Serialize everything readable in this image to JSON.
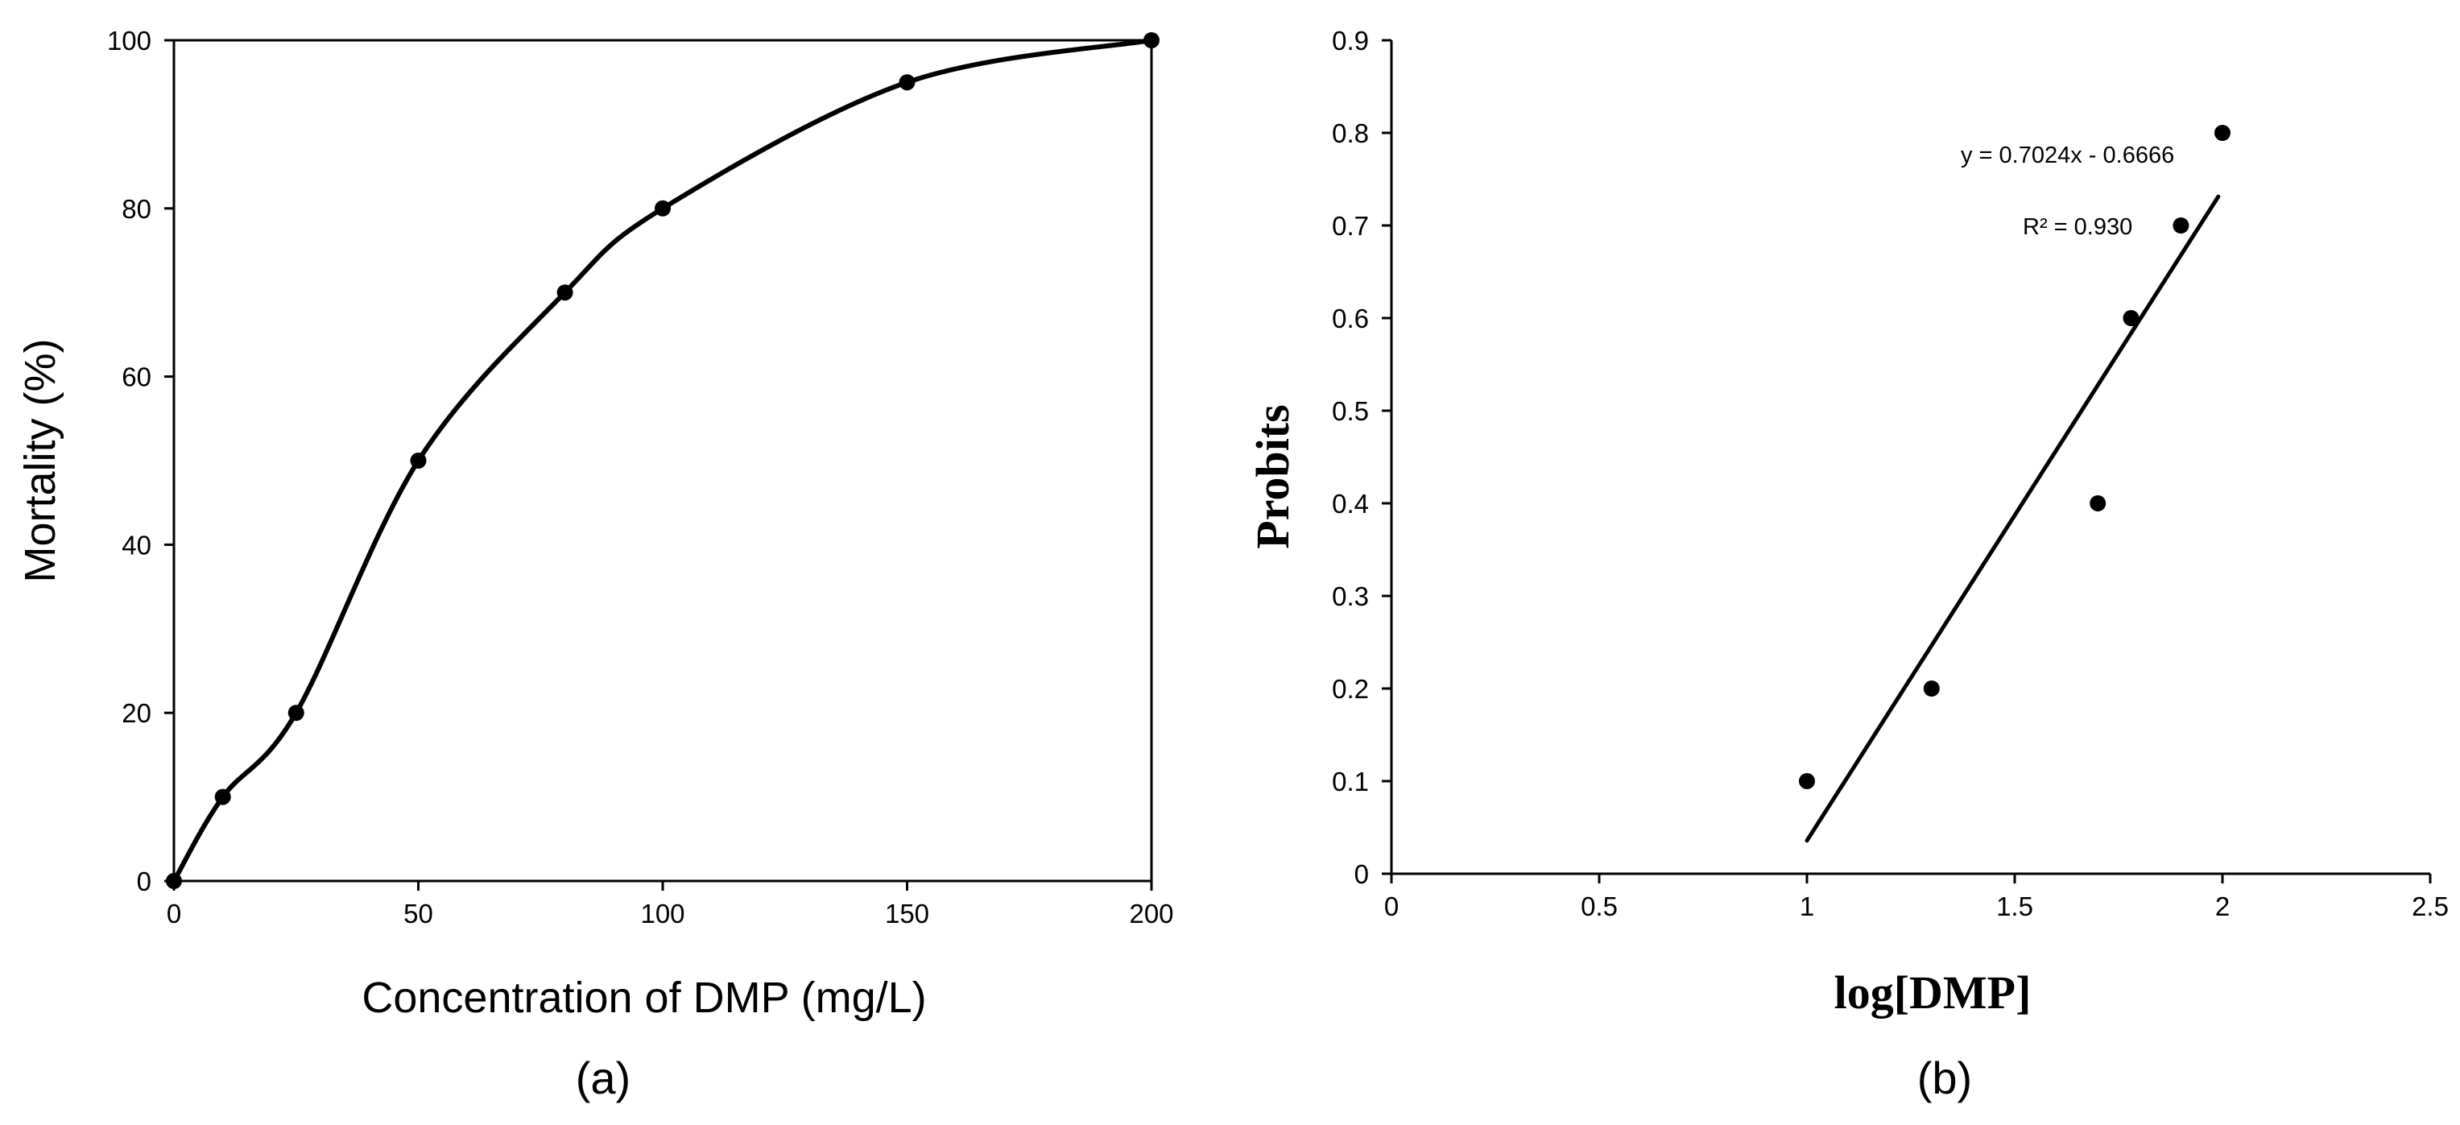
{
  "chart_data": [
    {
      "type": "line",
      "panel_label": "(a)",
      "title": "",
      "xlabel": "Concentration of DMP (mg/L)",
      "ylabel": "Mortality (%)",
      "xlim": [
        0,
        200
      ],
      "ylim": [
        0,
        100
      ],
      "xticks": [
        0,
        50,
        100,
        150,
        200
      ],
      "yticks": [
        0,
        20,
        40,
        60,
        80,
        100
      ],
      "grid": false,
      "legend": "none",
      "smoothed": true,
      "markers": true,
      "color": "#000000",
      "x": [
        0,
        10,
        25,
        50,
        80,
        100,
        150,
        200
      ],
      "y": [
        0,
        10,
        20,
        50,
        70,
        80,
        95,
        100
      ]
    },
    {
      "type": "scatter",
      "panel_label": "(b)",
      "title": "",
      "xlabel": "log[DMP]",
      "ylabel": "Probits",
      "xlim": [
        0,
        2.5
      ],
      "ylim": [
        0,
        0.9
      ],
      "xticks": [
        0,
        0.5,
        1,
        1.5,
        2,
        2.5
      ],
      "yticks": [
        0,
        0.1,
        0.2,
        0.3,
        0.4,
        0.5,
        0.6,
        0.7,
        0.8,
        0.9
      ],
      "grid": false,
      "legend": "none",
      "color": "#000000",
      "x": [
        1.0,
        1.3,
        1.7,
        1.78,
        1.9,
        2.0
      ],
      "y": [
        0.1,
        0.2,
        0.4,
        0.6,
        0.7,
        0.8
      ],
      "trendline": {
        "slope": 0.7024,
        "intercept": -0.6666,
        "x_range": [
          1.0,
          1.99
        ]
      },
      "annotations": {
        "equation": "y = 0.7024x - 0.6666",
        "r2": "R² = 0.930"
      }
    }
  ]
}
